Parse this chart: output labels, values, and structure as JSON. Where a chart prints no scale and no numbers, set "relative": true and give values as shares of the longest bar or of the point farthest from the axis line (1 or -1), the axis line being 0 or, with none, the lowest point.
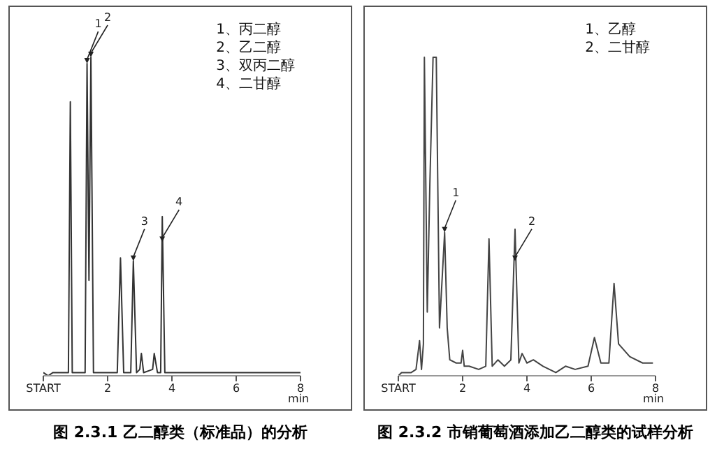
{
  "chart_data": [
    {
      "type": "line",
      "title": "图 2.3.1 乙二醇类（标准品）的分析",
      "xlabel": "min",
      "relative": true,
      "tick_labels": "x",
      "xlim": [
        0,
        8
      ],
      "xticks": [
        {
          "value": 0,
          "label": "START"
        },
        2,
        4,
        6,
        8
      ],
      "x": [
        0,
        0.15,
        0.3,
        0.78,
        0.84,
        0.9,
        1.3,
        1.36,
        1.42,
        1.48,
        1.56,
        2.3,
        2.4,
        2.5,
        2.72,
        2.8,
        2.9,
        3.0,
        3.05,
        3.12,
        3.4,
        3.45,
        3.55,
        3.65,
        3.7,
        3.78,
        8
      ],
      "series": [
        {
          "color": "#333333",
          "values": [
            0.01,
            0,
            0.01,
            0.01,
            0.86,
            0.01,
            0.01,
            0.98,
            0.3,
            1,
            0.01,
            0.01,
            0.37,
            0.01,
            0.01,
            0.36,
            0.01,
            0.02,
            0.07,
            0.01,
            0.02,
            0.07,
            0.01,
            0.01,
            0.5,
            0.01,
            0.01
          ]
        }
      ],
      "annotations": [
        "1、丙二醇",
        "2、乙二醇",
        "3、双丙二醇",
        "4、二甘醇",
        {
          "text": "1",
          "x": 1.36,
          "y": 0.98
        },
        {
          "text": "2",
          "x": 1.48,
          "y": 1
        },
        {
          "text": "3",
          "x": 2.8,
          "y": 0.36
        },
        {
          "text": "4",
          "x": 3.7,
          "y": 0.42
        }
      ]
    },
    {
      "type": "line",
      "title": "图 2.3.2 市销葡萄酒添加乙二醇类的试样分析",
      "xlabel": "min",
      "relative": true,
      "tick_labels": "x",
      "xlim": [
        0,
        8
      ],
      "xticks": [
        {
          "value": 0,
          "label": "START"
        },
        2,
        4,
        6,
        8
      ],
      "x": [
        0,
        0.1,
        0.4,
        0.55,
        0.66,
        0.72,
        0.78,
        0.81,
        0.9,
        0.98,
        1.08,
        1.18,
        1.28,
        1.44,
        1.52,
        1.6,
        1.8,
        1.95,
        2.0,
        2.05,
        2.2,
        2.5,
        2.72,
        2.82,
        2.92,
        3.1,
        3.3,
        3.5,
        3.63,
        3.75,
        3.85,
        4.0,
        4.2,
        4.5,
        4.9,
        5.2,
        5.5,
        5.9,
        6.1,
        6.3,
        6.55,
        6.71,
        6.85,
        7.2,
        7.6,
        7.92
      ],
      "series": [
        {
          "color": "#444444",
          "values": [
            0,
            0.01,
            0.01,
            0.02,
            0.11,
            0.02,
            0.1,
            1,
            0.2,
            0.6,
            1,
            1,
            0.15,
            0.45,
            0.15,
            0.05,
            0.04,
            0.04,
            0.08,
            0.03,
            0.03,
            0.02,
            0.03,
            0.43,
            0.03,
            0.05,
            0.03,
            0.05,
            0.46,
            0.04,
            0.07,
            0.04,
            0.05,
            0.03,
            0.01,
            0.03,
            0.02,
            0.03,
            0.12,
            0.04,
            0.04,
            0.29,
            0.1,
            0.06,
            0.04,
            0.04
          ]
        }
      ],
      "annotations": [
        "1、乙醇",
        "2、二甘醇",
        {
          "text": "1",
          "x": 1.44,
          "y": 0.45
        },
        {
          "text": "2",
          "x": 3.63,
          "y": 0.36
        }
      ]
    }
  ]
}
